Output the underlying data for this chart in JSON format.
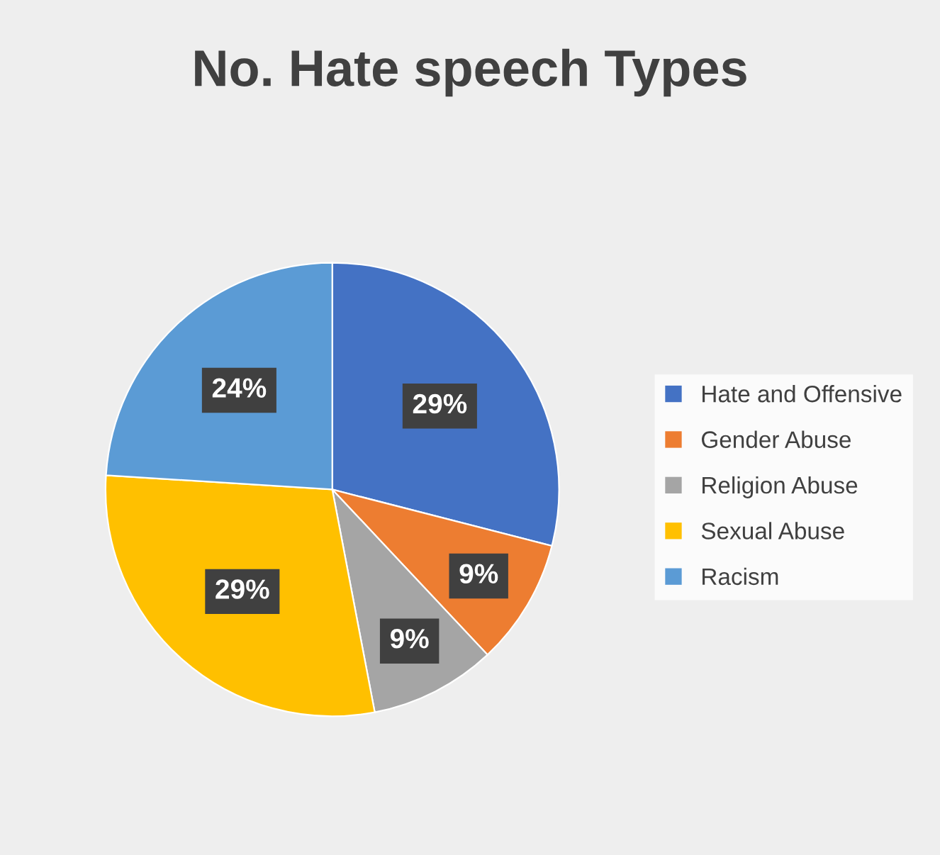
{
  "chart_data": {
    "type": "pie",
    "title": "No. Hate speech Types",
    "categories": [
      "Hate and Offensive",
      "Gender Abuse",
      "Religion Abuse",
      "Sexual Abuse",
      "Racism"
    ],
    "values": [
      29,
      9,
      9,
      29,
      24
    ],
    "colors": [
      "#4472c4",
      "#ed7d31",
      "#a5a5a5",
      "#ffc000",
      "#5b9bd5"
    ],
    "value_labels": [
      "29%",
      "9%",
      "9%",
      "29%",
      "24%"
    ],
    "legend": "right"
  }
}
